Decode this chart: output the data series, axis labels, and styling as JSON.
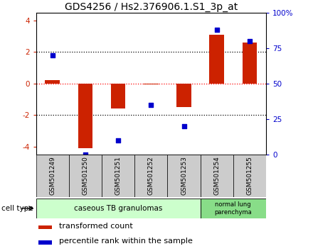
{
  "title": "GDS4256 / Hs2.376906.1.S1_3p_at",
  "samples": [
    "GSM501249",
    "GSM501250",
    "GSM501251",
    "GSM501252",
    "GSM501253",
    "GSM501254",
    "GSM501255"
  ],
  "transformed_count": [
    0.2,
    -4.1,
    -1.6,
    -0.05,
    -1.5,
    3.1,
    2.6
  ],
  "percentile_rank": [
    70,
    0,
    10,
    35,
    20,
    88,
    80
  ],
  "ylim_left": [
    -4.5,
    4.5
  ],
  "ylim_right": [
    0,
    100
  ],
  "yticks_left": [
    -4,
    -2,
    0,
    2,
    4
  ],
  "yticks_right": [
    0,
    25,
    50,
    75,
    100
  ],
  "yticklabels_right": [
    "0",
    "25",
    "50",
    "75",
    "100%"
  ],
  "hlines_y": [
    2,
    0,
    -2
  ],
  "hlines_style": [
    "dotted_black",
    "dotted_red",
    "dotted_black"
  ],
  "bar_color": "#cc2200",
  "dot_color": "#0000cc",
  "group1_samples": [
    0,
    1,
    2,
    3,
    4
  ],
  "group2_samples": [
    5,
    6
  ],
  "group1_label": "caseous TB granulomas",
  "group2_label": "normal lung\nparenchyma",
  "cell_type_label": "cell type",
  "legend_bar_label": "transformed count",
  "legend_dot_label": "percentile rank within the sample",
  "background_color": "#ffffff",
  "cell_type_bg1": "#ccffcc",
  "cell_type_bg2": "#88dd88",
  "sample_box_color": "#cccccc",
  "title_fontsize": 10,
  "tick_fontsize": 7.5,
  "sample_fontsize": 6.5,
  "legend_fontsize": 8,
  "cell_label_fontsize": 7.5
}
